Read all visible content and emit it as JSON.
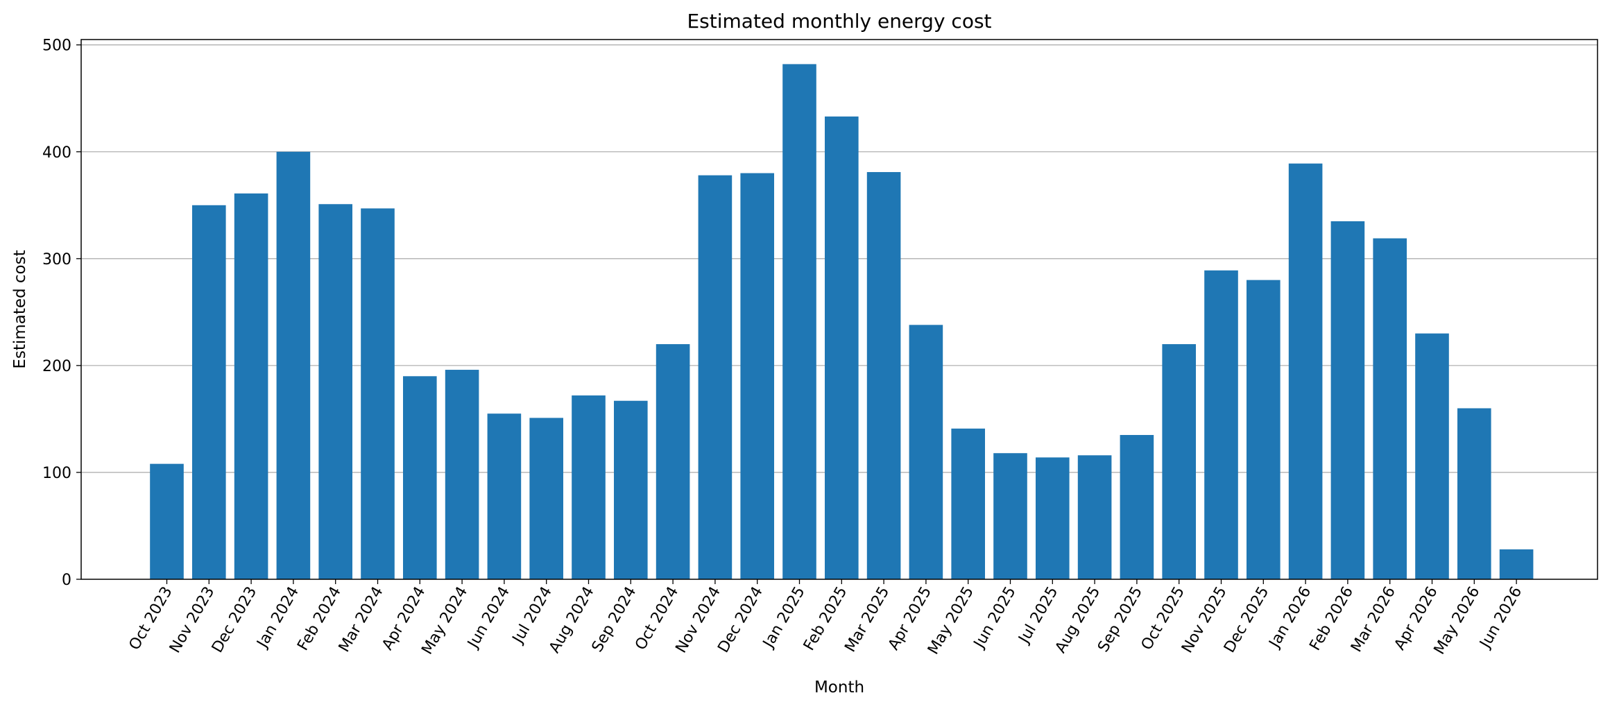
{
  "chart_data": {
    "type": "bar",
    "title": "Estimated monthly energy cost",
    "xlabel": "Month",
    "ylabel": "Estimated cost",
    "ylim": [
      0,
      505
    ],
    "yticks": [
      0,
      100,
      200,
      300,
      400,
      500
    ],
    "grid": "horizontal",
    "legend": "none",
    "bar_color": "#1f77b4",
    "categories": [
      "Oct 2023",
      "Nov 2023",
      "Dec 2023",
      "Jan 2024",
      "Feb 2024",
      "Mar 2024",
      "Apr 2024",
      "May 2024",
      "Jun 2024",
      "Jul 2024",
      "Aug 2024",
      "Sep 2024",
      "Oct 2024",
      "Nov 2024",
      "Dec 2024",
      "Jan 2025",
      "Feb 2025",
      "Mar 2025",
      "Apr 2025",
      "May 2025",
      "Jun 2025",
      "Jul 2025",
      "Aug 2025",
      "Sep 2025",
      "Oct 2025",
      "Nov 2025",
      "Dec 2025",
      "Jan 2026",
      "Feb 2026",
      "Mar 2026",
      "Apr 2026",
      "May 2026",
      "Jun 2026"
    ],
    "values": [
      108,
      350,
      361,
      400,
      351,
      347,
      190,
      196,
      155,
      151,
      172,
      167,
      220,
      378,
      380,
      482,
      433,
      381,
      238,
      141,
      118,
      114,
      116,
      135,
      220,
      289,
      280,
      389,
      335,
      319,
      230,
      160,
      28
    ]
  }
}
